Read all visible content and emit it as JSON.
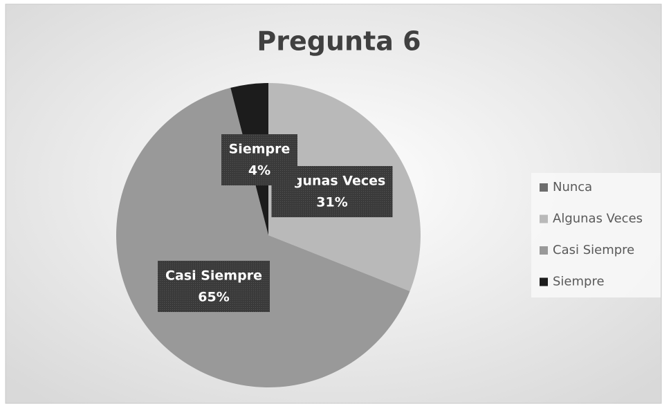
{
  "chart_data": {
    "type": "pie",
    "title": "Pregunta 6",
    "categories": [
      "Nunca",
      "Algunas Veces",
      "Casi Siempre",
      "Siempre"
    ],
    "values": [
      0,
      31,
      65,
      4
    ],
    "value_labels": [
      null,
      "31%",
      "65%",
      "4%"
    ],
    "colors": [
      "#6d6d6d",
      "#b9b9b9",
      "#999999",
      "#1c1c1c"
    ],
    "legend": "right"
  }
}
